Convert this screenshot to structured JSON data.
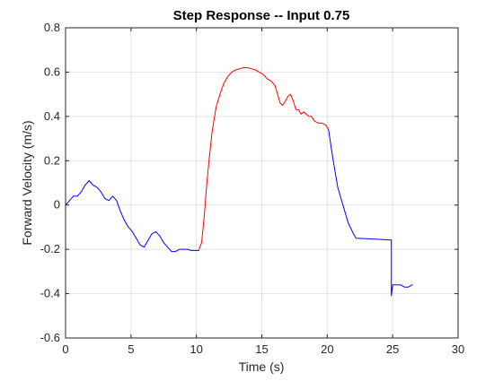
{
  "chart_data": {
    "type": "line",
    "title": "Step Response -- Input 0.75",
    "xlabel": "Time (s)",
    "ylabel": "Forward Velocity (m/s)",
    "xlim": [
      0,
      30
    ],
    "ylim": [
      -0.6,
      0.8
    ],
    "x_ticks": [
      0,
      5,
      10,
      15,
      20,
      25,
      30
    ],
    "y_ticks": [
      -0.6,
      -0.4,
      -0.2,
      0,
      0.2,
      0.4,
      0.6,
      0.8
    ],
    "x_tick_labels": [
      "0",
      "5",
      "10",
      "15",
      "20",
      "25",
      "30"
    ],
    "y_tick_labels": [
      "-0.6",
      "-0.4",
      "-0.2",
      "0",
      "0.2",
      "0.4",
      "0.6",
      "0.8"
    ],
    "grid": true,
    "series": [
      {
        "color": "#0000ff",
        "x": [
          0,
          0.3,
          0.6,
          0.9,
          1.2,
          1.5,
          1.8,
          2.1,
          2.4,
          2.7,
          3.0,
          3.3,
          3.6,
          3.9,
          4.2,
          4.5,
          4.8,
          5.1,
          5.4,
          5.7,
          6.0,
          6.3,
          6.6,
          6.9,
          7.2,
          7.5,
          7.8,
          8.1,
          8.4,
          8.7,
          9.0,
          9.3,
          9.6,
          9.9,
          10.2
        ],
        "y": [
          0.0,
          0.02,
          0.04,
          0.04,
          0.06,
          0.09,
          0.11,
          0.09,
          0.08,
          0.06,
          0.03,
          0.02,
          0.04,
          0.02,
          -0.03,
          -0.07,
          -0.1,
          -0.12,
          -0.15,
          -0.18,
          -0.19,
          -0.16,
          -0.13,
          -0.12,
          -0.14,
          -0.17,
          -0.19,
          -0.21,
          -0.21,
          -0.2,
          -0.2,
          -0.2,
          -0.205,
          -0.205,
          -0.205
        ]
      },
      {
        "color": "#ff0000",
        "x": [
          10.2,
          10.4,
          10.6,
          10.8,
          11.0,
          11.2,
          11.5,
          11.8,
          12.1,
          12.4,
          12.7,
          13.0,
          13.3,
          13.6,
          13.9,
          14.2,
          14.5,
          14.8,
          15.1,
          15.4,
          15.7,
          16.0,
          16.2,
          16.4,
          16.6,
          16.8,
          17.0,
          17.2,
          17.4,
          17.6,
          17.8,
          18.0,
          18.2,
          18.4,
          18.6,
          18.8,
          19.0,
          19.3,
          19.6,
          19.9,
          20.1
        ],
        "y": [
          -0.2,
          -0.17,
          -0.05,
          0.1,
          0.22,
          0.33,
          0.44,
          0.5,
          0.55,
          0.58,
          0.6,
          0.61,
          0.615,
          0.62,
          0.62,
          0.615,
          0.61,
          0.6,
          0.59,
          0.57,
          0.56,
          0.54,
          0.5,
          0.46,
          0.45,
          0.47,
          0.49,
          0.5,
          0.47,
          0.43,
          0.43,
          0.41,
          0.42,
          0.41,
          0.4,
          0.4,
          0.38,
          0.37,
          0.37,
          0.36,
          0.34
        ]
      },
      {
        "color": "#0000ff",
        "x": [
          20.1,
          20.4,
          20.8,
          21.2,
          21.6,
          22.0,
          22.2,
          23.0,
          24.0,
          24.9,
          24.9,
          25.0,
          25.3,
          25.6,
          25.9,
          26.2,
          26.5
        ],
        "y": [
          0.34,
          0.22,
          0.08,
          0.0,
          -0.08,
          -0.13,
          -0.15,
          -0.152,
          -0.155,
          -0.158,
          -0.41,
          -0.36,
          -0.36,
          -0.36,
          -0.37,
          -0.37,
          -0.36
        ]
      }
    ]
  }
}
